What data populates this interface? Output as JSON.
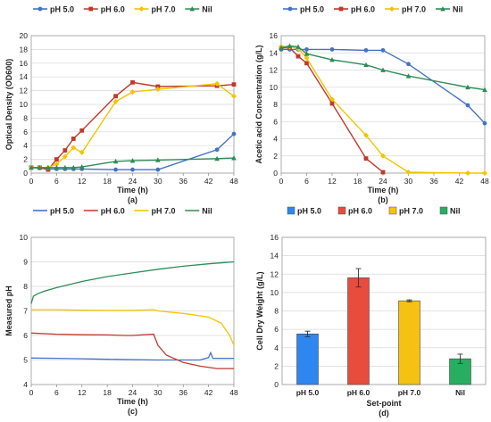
{
  "chart_data": [
    {
      "id": "a",
      "type": "line",
      "panel_label": "(a)",
      "xlabel": "Time (h)",
      "ylabel": "Optical Density (OD600)",
      "xlim": [
        0,
        48
      ],
      "ylim": [
        0,
        20
      ],
      "xticks": [
        0,
        6,
        12,
        18,
        24,
        30,
        36,
        42,
        48
      ],
      "yticks": [
        0,
        2,
        4,
        6,
        8,
        10,
        12,
        14,
        16,
        18,
        20
      ],
      "grid": "horizontal",
      "legend_position": "top",
      "series": [
        {
          "name": "pH 5.0",
          "color": "#4472C4",
          "marker": "circle",
          "x": [
            0,
            2,
            4,
            6,
            8,
            10,
            12,
            20,
            24,
            30,
            44,
            48
          ],
          "y": [
            0.8,
            0.7,
            0.6,
            0.6,
            0.6,
            0.6,
            0.6,
            0.5,
            0.5,
            0.5,
            3.4,
            5.7
          ]
        },
        {
          "name": "pH 6.0",
          "color": "#C0392B",
          "marker": "square",
          "x": [
            0,
            2,
            4,
            6,
            8,
            10,
            12,
            20,
            24,
            30,
            44,
            48
          ],
          "y": [
            0.8,
            0.8,
            0.5,
            2.0,
            3.3,
            5.0,
            6.2,
            11.2,
            13.2,
            12.6,
            12.7,
            12.9
          ]
        },
        {
          "name": "pH 7.0",
          "color": "#F2C500",
          "marker": "diamond",
          "x": [
            0,
            2,
            4,
            6,
            8,
            10,
            12,
            20,
            24,
            30,
            44,
            48
          ],
          "y": [
            0.8,
            0.8,
            0.8,
            1.3,
            2.4,
            3.7,
            3.0,
            10.4,
            11.8,
            12.2,
            13.0,
            11.2
          ]
        },
        {
          "name": "Nil",
          "color": "#2E8B57",
          "marker": "triangle",
          "x": [
            0,
            2,
            4,
            6,
            8,
            10,
            12,
            20,
            24,
            30,
            44,
            48
          ],
          "y": [
            0.8,
            0.8,
            0.8,
            0.8,
            0.8,
            0.8,
            0.9,
            1.7,
            1.8,
            1.9,
            2.1,
            2.2
          ]
        }
      ]
    },
    {
      "id": "b",
      "type": "line",
      "panel_label": "(b)",
      "xlabel": "Time (h)",
      "ylabel": "Acetic acid Concentration (g/L)",
      "xlim": [
        0,
        48
      ],
      "ylim": [
        0,
        16
      ],
      "xticks": [
        0,
        6,
        12,
        18,
        24,
        30,
        36,
        42,
        48
      ],
      "yticks": [
        0,
        2,
        4,
        6,
        8,
        10,
        12,
        14,
        16
      ],
      "grid": "horizontal",
      "legend_position": "top",
      "series": [
        {
          "name": "pH 5.0",
          "color": "#4472C4",
          "marker": "circle",
          "x": [
            0,
            2,
            4,
            6,
            12,
            20,
            24,
            30,
            44,
            48
          ],
          "y": [
            14.4,
            14.4,
            14.4,
            14.4,
            14.4,
            14.3,
            14.3,
            12.7,
            7.9,
            5.8
          ]
        },
        {
          "name": "pH 6.0",
          "color": "#C0392B",
          "marker": "square",
          "x": [
            0,
            2,
            4,
            6,
            12,
            20,
            24
          ],
          "y": [
            14.6,
            14.6,
            13.6,
            12.8,
            8.1,
            1.7,
            0.1
          ]
        },
        {
          "name": "pH 7.0",
          "color": "#F2C500",
          "marker": "diamond",
          "x": [
            0,
            2,
            4,
            6,
            12,
            20,
            24,
            30,
            44,
            48
          ],
          "y": [
            14.7,
            14.7,
            14.5,
            13.4,
            8.6,
            4.4,
            2.0,
            0.1,
            0.0,
            0.0
          ]
        },
        {
          "name": "Nil",
          "color": "#2E8B57",
          "marker": "triangle",
          "x": [
            0,
            2,
            4,
            6,
            12,
            20,
            24,
            30,
            44,
            48
          ],
          "y": [
            14.6,
            14.8,
            14.7,
            13.9,
            13.2,
            12.6,
            12.0,
            11.3,
            10.0,
            9.7
          ]
        }
      ]
    },
    {
      "id": "c",
      "type": "line",
      "panel_label": "(c)",
      "xlabel": "Time (h)",
      "ylabel": "Measured pH",
      "xlim": [
        0,
        48
      ],
      "ylim": [
        4,
        10
      ],
      "xticks": [
        0,
        6,
        12,
        18,
        24,
        30,
        36,
        42,
        48
      ],
      "yticks": [
        4,
        5,
        6,
        7,
        8,
        9,
        10
      ],
      "grid": "horizontal",
      "legend_position": "top",
      "series": [
        {
          "name": "pH 5.0",
          "color": "#4472C4",
          "x": [
            0,
            6,
            12,
            18,
            24,
            30,
            36,
            40,
            42,
            42.5,
            43,
            48
          ],
          "y": [
            5.08,
            5.07,
            5.05,
            5.03,
            5.01,
            5.0,
            5.0,
            5.0,
            5.1,
            5.3,
            5.07,
            5.07
          ]
        },
        {
          "name": "pH 6.0",
          "color": "#C0392B",
          "x": [
            0,
            6,
            12,
            18,
            22,
            24,
            29,
            30,
            32,
            36,
            40,
            44,
            48
          ],
          "y": [
            6.1,
            6.05,
            6.03,
            6.02,
            6.0,
            6.0,
            6.05,
            5.6,
            5.2,
            4.9,
            4.75,
            4.65,
            4.65
          ]
        },
        {
          "name": "pH 7.0",
          "color": "#F2C500",
          "x": [
            0,
            6,
            12,
            18,
            24,
            29,
            30,
            36,
            42,
            45,
            47,
            48
          ],
          "y": [
            7.05,
            7.05,
            7.03,
            7.02,
            7.02,
            7.05,
            7.0,
            6.9,
            6.75,
            6.5,
            6.0,
            5.6
          ]
        },
        {
          "name": "Nil",
          "color": "#2E8B57",
          "x": [
            0,
            0.5,
            1.5,
            3,
            6,
            12,
            18,
            24,
            30,
            36,
            42,
            48
          ],
          "y": [
            7.3,
            7.6,
            7.7,
            7.8,
            7.95,
            8.2,
            8.4,
            8.55,
            8.7,
            8.82,
            8.92,
            9.0
          ]
        }
      ]
    },
    {
      "id": "d",
      "type": "bar",
      "panel_label": "(d)",
      "xlabel": "Set-point",
      "ylabel": "Cell Dry Weight (g/L)",
      "ylim": [
        0,
        16
      ],
      "yticks": [
        0,
        2,
        4,
        6,
        8,
        10,
        12,
        14,
        16
      ],
      "grid": "horizontal",
      "legend_position": "top",
      "categories": [
        "pH 5.0",
        "pH 6.0",
        "pH 7.0",
        "Nil"
      ],
      "values": [
        5.5,
        11.6,
        9.1,
        2.8
      ],
      "errors": [
        0.3,
        1.0,
        0.1,
        0.5
      ],
      "colors": [
        "#2E86F0",
        "#E74C3C",
        "#F5C211",
        "#27AE60"
      ]
    }
  ]
}
